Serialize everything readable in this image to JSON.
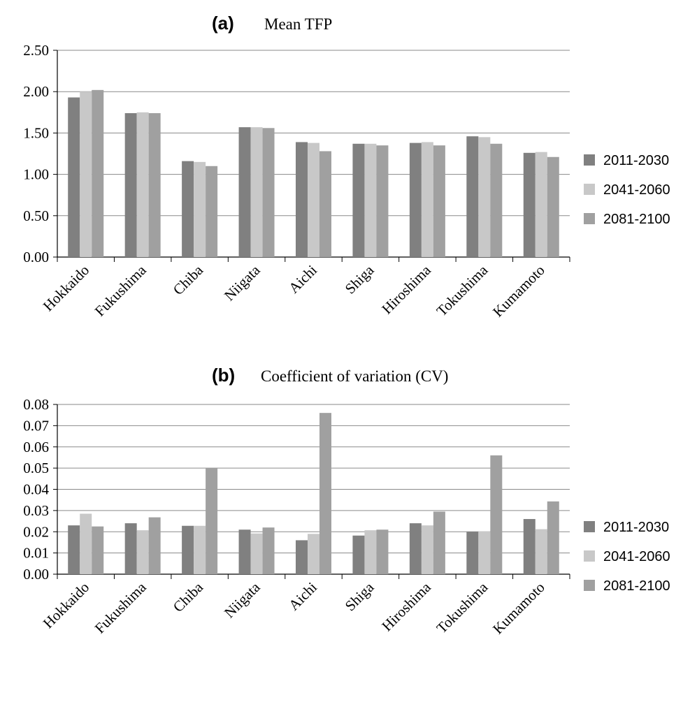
{
  "chart_data": [
    {
      "type": "bar",
      "panel": "(a)",
      "title": "Mean TFP",
      "categories": [
        "Hokkaido",
        "Fukushima",
        "Chiba",
        "Niigata",
        "Aichi",
        "Shiga",
        "Hiroshima",
        "Tokushima",
        "Kumamoto"
      ],
      "series": [
        {
          "name": "2011-2030",
          "color": "#808080",
          "values": [
            1.93,
            1.74,
            1.16,
            1.57,
            1.39,
            1.37,
            1.38,
            1.46,
            1.26
          ]
        },
        {
          "name": "2041-2060",
          "color": "#c8c8c8",
          "values": [
            2.0,
            1.75,
            1.15,
            1.57,
            1.38,
            1.37,
            1.39,
            1.45,
            1.27
          ]
        },
        {
          "name": "2081-2100",
          "color": "#a0a0a0",
          "values": [
            2.02,
            1.74,
            1.1,
            1.56,
            1.28,
            1.35,
            1.35,
            1.37,
            1.21
          ]
        }
      ],
      "yticks": [
        "0.00",
        "0.50",
        "1.00",
        "1.50",
        "2.00",
        "2.50"
      ],
      "ylim": [
        0,
        2.5
      ],
      "grid": true,
      "legend": "right"
    },
    {
      "type": "bar",
      "panel": "(b)",
      "title": "Coefficient of variation (CV)",
      "categories": [
        "Hokkaido",
        "Fukushima",
        "Chiba",
        "Niigata",
        "Aichi",
        "Shiga",
        "Hiroshima",
        "Tokushima",
        "Kumamoto"
      ],
      "series": [
        {
          "name": "2011-2030",
          "color": "#808080",
          "values": [
            0.023,
            0.024,
            0.0228,
            0.021,
            0.016,
            0.0182,
            0.024,
            0.02,
            0.026
          ]
        },
        {
          "name": "2041-2060",
          "color": "#c8c8c8",
          "values": [
            0.0285,
            0.0207,
            0.0228,
            0.0192,
            0.019,
            0.0207,
            0.023,
            0.0202,
            0.0212
          ]
        },
        {
          "name": "2081-2100",
          "color": "#a0a0a0",
          "values": [
            0.0225,
            0.0268,
            0.05,
            0.022,
            0.076,
            0.021,
            0.0295,
            0.056,
            0.0343
          ]
        }
      ],
      "yticks": [
        "0.00",
        "0.01",
        "0.02",
        "0.03",
        "0.04",
        "0.05",
        "0.06",
        "0.07",
        "0.08"
      ],
      "ylim": [
        0,
        0.08
      ],
      "grid": true,
      "legend": "right"
    }
  ]
}
